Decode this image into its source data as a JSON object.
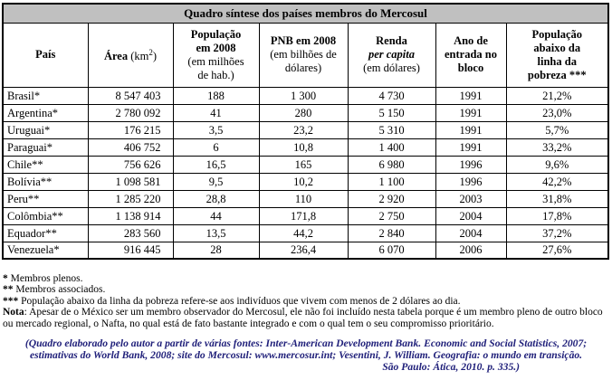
{
  "table": {
    "title": "Quadro síntese dos países membros do Mercosul",
    "title_bg": "#c0c0c0",
    "headers": {
      "pais": {
        "bold": "País"
      },
      "area": {
        "bold": "Área",
        "unit_prefix": " (km",
        "unit_sup": "2",
        "unit_suffix": ")"
      },
      "populacao": {
        "line1": "População",
        "line2": "em 2008",
        "line3": "(em milhões",
        "line4": "de hab.)"
      },
      "pnb": {
        "line1": "PNB em 2008",
        "line2": "(em bilhões de",
        "line3": "dólares)"
      },
      "renda": {
        "line1": "Renda",
        "line2": "per capita",
        "line3": "(em dólares)"
      },
      "ano": {
        "line1": "Ano de",
        "line2": "entrada no",
        "line3": "bloco"
      },
      "pobreza": {
        "line1": "População",
        "line2": "abaixo da",
        "line3": "linha da",
        "line4": "pobreza ***"
      }
    },
    "rows": [
      {
        "pais": "Brasil*",
        "area": "8 547 403",
        "populacao": "188",
        "pnb": "1 300",
        "renda": "4 730",
        "ano": "1991",
        "pobreza": "21,2%"
      },
      {
        "pais": "Argentina*",
        "area": "2 780 092",
        "populacao": "41",
        "pnb": "280",
        "renda": "5 150",
        "ano": "1991",
        "pobreza": "23,0%"
      },
      {
        "pais": "Uruguai*",
        "area": "176 215",
        "populacao": "3,5",
        "pnb": "23,2",
        "renda": "5 310",
        "ano": "1991",
        "pobreza": "5,7%"
      },
      {
        "pais": "Paraguai*",
        "area": "406 752",
        "populacao": "6",
        "pnb": "10,8",
        "renda": "1 400",
        "ano": "1991",
        "pobreza": "33,2%"
      },
      {
        "pais": "Chile**",
        "area": "756 626",
        "populacao": "16,5",
        "pnb": "165",
        "renda": "6 980",
        "ano": "1996",
        "pobreza": "9,6%"
      },
      {
        "pais": "Bolívia**",
        "area": "1 098 581",
        "populacao": "9,5",
        "pnb": "10,2",
        "renda": "1 100",
        "ano": "1996",
        "pobreza": "42,2%"
      },
      {
        "pais": "Peru**",
        "area": "1 285 220",
        "populacao": "28,8",
        "pnb": "110",
        "renda": "2 920",
        "ano": "2003",
        "pobreza": "31,8%"
      },
      {
        "pais": "Colômbia**",
        "area": "1 138 914",
        "populacao": "44",
        "pnb": "171,8",
        "renda": "2 750",
        "ano": "2004",
        "pobreza": "17,8%"
      },
      {
        "pais": "Equador**",
        "area": "283 560",
        "populacao": "13,5",
        "pnb": "44,2",
        "renda": "2 840",
        "ano": "2004",
        "pobreza": "37,2%"
      },
      {
        "pais": "Venezuela*",
        "area": "916 445",
        "populacao": "28",
        "pnb": "236,4",
        "renda": "6 070",
        "ano": "2006",
        "pobreza": "27,6%"
      }
    ]
  },
  "footnotes": {
    "plenos": {
      "marker": "*",
      "text": " Membros plenos."
    },
    "associados": {
      "marker": "**",
      "text": " Membros associados."
    },
    "pobreza": {
      "marker": "***",
      "text": " População abaixo da linha da pobreza refere-se aos indivíduos que vivem com menos de 2 dólares ao dia."
    },
    "nota": {
      "label": "Nota",
      "text": ": Apesar de o México ser um membro observador do Mercosul, ele não foi incluído nesta tabela porque é um membro pleno de outro bloco ou mercado regional, o Nafta, no qual está de fato bastante integrado e com o qual tem o seu compromisso prioritário."
    }
  },
  "citation": {
    "color": "#20207a",
    "line1": "(Quadro elaborado pelo autor a partir de várias fontes: Inter-American Development Bank. Economic and Social Statistics, 2007;",
    "line2": "estimativas do World Bank, 2008; site do Mercosul: www.mercosur.int; Vesentini, J. William. Geografia: o mundo em transição.",
    "line3": "São Paulo: Ática, 2010. p. 335.)"
  }
}
